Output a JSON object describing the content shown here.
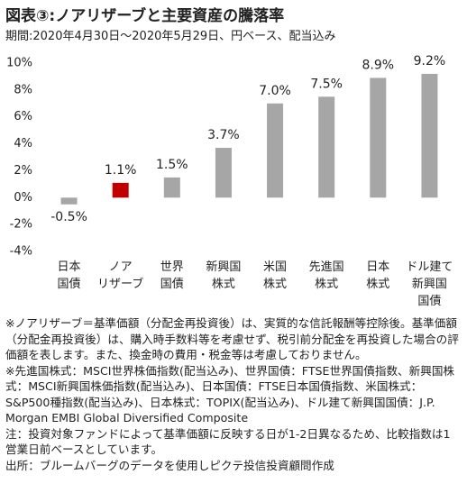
{
  "chart_data": {
    "type": "bar",
    "title": "図表③:ノアリザーブと主要資産の騰落率",
    "subtitle": "期間:2020年4月30日～2020年5月29日、円ベース、配当込み",
    "categories": [
      "日本\n国債",
      "ノア\nリザーブ",
      "世界\n国債",
      "新興国\n株式",
      "米国\n株式",
      "先進国\n株式",
      "日本\n株式",
      "ドル建て\n新興国\n国債"
    ],
    "values": [
      -0.5,
      1.1,
      1.5,
      3.7,
      7.0,
      7.5,
      8.9,
      9.2
    ],
    "value_labels": [
      "-0.5%",
      "1.1%",
      "1.5%",
      "3.7%",
      "7.0%",
      "7.5%",
      "8.9%",
      "9.2%"
    ],
    "colors": [
      "#a6a6a6",
      "#c00000",
      "#a6a6a6",
      "#a6a6a6",
      "#a6a6a6",
      "#a6a6a6",
      "#a6a6a6",
      "#a6a6a6"
    ],
    "ylim": [
      -4,
      10
    ],
    "yticks": [
      {
        "value": -4,
        "label": "-4%"
      },
      {
        "value": -2,
        "label": "-2%"
      },
      {
        "value": 0,
        "label": "0%"
      },
      {
        "value": 2,
        "label": "2%"
      },
      {
        "value": 4,
        "label": "4%"
      },
      {
        "value": 6,
        "label": "6%"
      },
      {
        "value": 8,
        "label": "8%"
      },
      {
        "value": 10,
        "label": "10%"
      }
    ],
    "grid": false,
    "notes": [
      "※ノアリザーブ＝基準価額（分配金再投資後）は、実質的な信託報酬等控除後。基準価額（分配金再投資後）は、購入時手数料等を考慮せず、税引前分配金を再投資した場合の評価額を表します。また、換金時の費用・税金等は考慮しておりません。",
      "※先進国株式：MSCI世界株価指数(配当込み)、世界国債：FTSE世界国債指数、新興国株式：MSCI新興国株価指数(配当込み)、日本国債：FTSE日本国債指数、米国株式：S&P500種指数(配当込み)、日本株式：TOPIX(配当込み)、ドル建て新興国国債：J.P. Morgan EMBI Global Diversified Composite",
      "注：投資対象ファンドによって基準価額に反映する日が1-2日異なるため、比較指数は1営業日前ベースとしています。",
      "出所：ブルームバーグのデータを使用しピクテ投信投資顧問作成"
    ]
  }
}
